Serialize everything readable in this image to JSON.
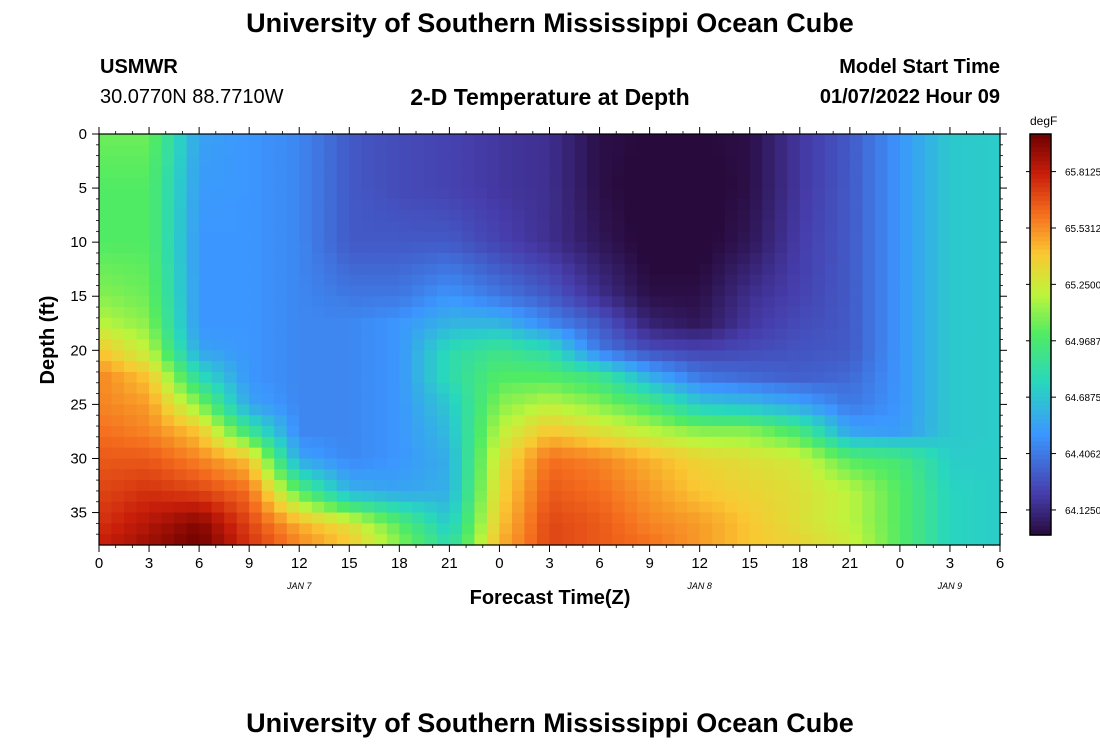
{
  "title": "University of Southern Mississippi Ocean Cube",
  "footer_title": "University of Southern Mississippi Ocean Cube",
  "station": {
    "id": "USMWR",
    "coords": "30.0770N  88.7710W"
  },
  "subtitle": "2-D Temperature at Depth",
  "model_start": {
    "label": "Model Start Time",
    "value": "01/07/2022 Hour 09"
  },
  "chart_data": {
    "type": "heatmap",
    "title": "2-D Temperature at Depth",
    "xlabel": "Forecast Time(Z)",
    "ylabel": "Depth (ft)",
    "units": "degF",
    "x_ticks": [
      "0",
      "3",
      "6",
      "9",
      "12",
      "15",
      "18",
      "21",
      "0",
      "3",
      "6",
      "9",
      "12",
      "15",
      "18",
      "21",
      "0",
      "3",
      "6"
    ],
    "x_hours_range": [
      0,
      54
    ],
    "date_labels": [
      {
        "label": "JAN 7",
        "hour": 12
      },
      {
        "label": "JAN 8",
        "hour": 36
      },
      {
        "label": "JAN 9",
        "hour": 51
      }
    ],
    "y_ticks": [
      0,
      5,
      10,
      15,
      20,
      25,
      30,
      35
    ],
    "ylim": [
      0,
      38
    ],
    "y_inverted": true,
    "colorbar": {
      "label": "degF",
      "ticks": [
        "65.8125",
        "65.5312",
        "65.2500",
        "64.9687",
        "64.6875",
        "64.4062",
        "64.1250"
      ],
      "range": [
        64.0,
        66.0
      ]
    },
    "times": [
      0,
      3,
      6,
      9,
      12,
      15,
      18,
      21,
      24,
      27,
      30,
      33,
      36,
      39,
      42,
      45,
      48,
      51,
      54
    ],
    "depths": [
      0,
      5,
      10,
      15,
      17.5,
      20,
      22.5,
      25,
      27.5,
      30,
      33,
      36,
      38
    ],
    "values": [
      [
        65.05,
        65.05,
        64.55,
        64.5,
        64.45,
        64.3,
        64.25,
        64.22,
        64.18,
        64.15,
        64.02,
        64.0,
        64.0,
        64.02,
        64.18,
        64.3,
        64.5,
        64.7,
        64.72
      ],
      [
        65.0,
        65.0,
        64.52,
        64.5,
        64.45,
        64.3,
        64.25,
        64.22,
        64.18,
        64.15,
        64.02,
        63.98,
        63.98,
        64.02,
        64.18,
        64.3,
        64.5,
        64.7,
        64.72
      ],
      [
        65.0,
        65.0,
        64.5,
        64.5,
        64.45,
        64.3,
        64.3,
        64.3,
        64.22,
        64.15,
        64.05,
        63.98,
        63.98,
        64.05,
        64.2,
        64.3,
        64.5,
        64.7,
        64.72
      ],
      [
        65.1,
        65.05,
        64.5,
        64.5,
        64.45,
        64.4,
        64.4,
        64.5,
        64.4,
        64.3,
        64.15,
        64.02,
        64.02,
        64.15,
        64.22,
        64.3,
        64.5,
        64.7,
        64.72
      ],
      [
        65.2,
        65.1,
        64.5,
        64.5,
        64.45,
        64.45,
        64.5,
        64.62,
        64.62,
        64.45,
        64.3,
        64.1,
        64.05,
        64.18,
        64.25,
        64.3,
        64.5,
        64.7,
        64.72
      ],
      [
        65.4,
        65.2,
        64.55,
        64.5,
        64.45,
        64.45,
        64.5,
        64.8,
        64.9,
        64.8,
        64.4,
        64.25,
        64.22,
        64.25,
        64.28,
        64.3,
        64.5,
        64.7,
        64.72
      ],
      [
        65.55,
        65.4,
        64.8,
        64.5,
        64.45,
        64.45,
        64.5,
        64.8,
        65.0,
        65.0,
        64.9,
        64.6,
        64.4,
        64.35,
        64.32,
        64.35,
        64.5,
        64.7,
        64.72
      ],
      [
        65.55,
        65.5,
        65.1,
        64.55,
        64.45,
        64.45,
        64.5,
        64.7,
        65.1,
        65.2,
        65.1,
        64.95,
        64.7,
        64.65,
        64.55,
        64.4,
        64.5,
        64.7,
        64.72
      ],
      [
        65.6,
        65.55,
        65.4,
        64.9,
        64.45,
        64.45,
        64.5,
        64.65,
        65.2,
        65.4,
        65.3,
        65.2,
        65.1,
        65.1,
        64.95,
        64.55,
        64.52,
        64.7,
        64.72
      ],
      [
        65.65,
        65.65,
        65.55,
        65.4,
        64.55,
        64.45,
        64.5,
        64.6,
        65.3,
        65.6,
        65.55,
        65.45,
        65.35,
        65.3,
        65.25,
        65.0,
        64.95,
        64.72,
        64.72
      ],
      [
        65.7,
        65.75,
        65.7,
        65.6,
        65.0,
        64.6,
        64.55,
        64.6,
        65.35,
        65.65,
        65.6,
        65.5,
        65.4,
        65.35,
        65.3,
        65.2,
        65.0,
        64.75,
        64.72
      ],
      [
        65.75,
        65.85,
        65.95,
        65.7,
        65.45,
        65.3,
        65.0,
        64.7,
        65.4,
        65.7,
        65.65,
        65.55,
        65.5,
        65.4,
        65.3,
        65.2,
        65.0,
        64.75,
        64.72
      ],
      [
        65.8,
        65.9,
        66.0,
        65.75,
        65.55,
        65.4,
        65.1,
        64.8,
        65.45,
        65.7,
        65.65,
        65.6,
        65.5,
        65.4,
        65.35,
        65.25,
        65.0,
        64.75,
        64.72
      ]
    ]
  }
}
